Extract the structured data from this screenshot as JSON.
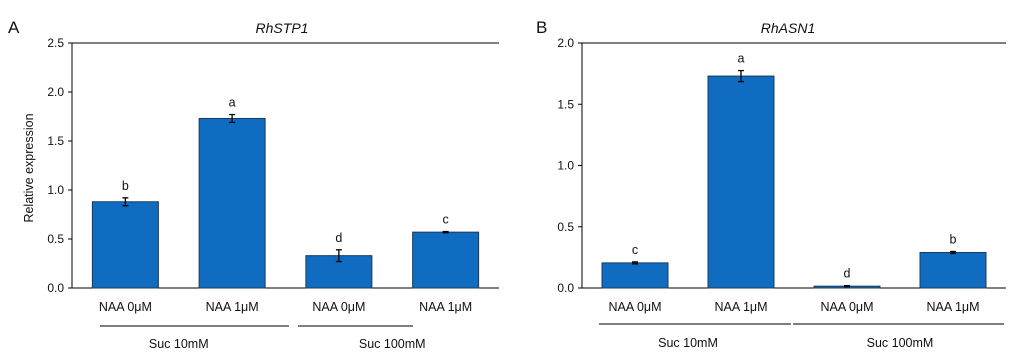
{
  "colors": {
    "bar": "#0f6cc0",
    "bar_stroke": "#1b3b5a",
    "axis": "#000000"
  },
  "chart_data": [
    {
      "type": "bar",
      "panel": "A",
      "title": "RhSTP1",
      "ylabel": "Relative expression",
      "xlabel": "",
      "ylim": [
        0,
        2.5
      ],
      "yticks": [
        "0.0",
        "0.5",
        "1.0",
        "1.5",
        "2.0",
        "2.5"
      ],
      "categories": [
        "NAA 0μM",
        "NAA 1μM",
        "NAA 0μM",
        "NAA 1μM"
      ],
      "groups": [
        {
          "label": "Suc 10mM",
          "members": [
            0,
            1
          ]
        },
        {
          "label": "Suc 100mM",
          "members": [
            2,
            3
          ]
        }
      ],
      "values": [
        0.88,
        1.73,
        0.33,
        0.57
      ],
      "errors": [
        0.04,
        0.04,
        0.06,
        0.006
      ],
      "significance": [
        "b",
        "a",
        "d",
        "c"
      ],
      "grid": false,
      "legend": "none"
    },
    {
      "type": "bar",
      "panel": "B",
      "title": "RhASN1",
      "ylabel": "",
      "xlabel": "",
      "ylim": [
        0,
        2.0
      ],
      "yticks": [
        "0.0",
        "0.5",
        "1.0",
        "1.5",
        "2.0"
      ],
      "categories": [
        "NAA 0μM",
        "NAA 1μM",
        "NAA 0μM",
        "NAA 1μM"
      ],
      "groups": [
        {
          "label": "Suc 10mM",
          "members": [
            0,
            1
          ]
        },
        {
          "label": "Suc 100mM",
          "members": [
            2,
            3
          ]
        }
      ],
      "values": [
        0.205,
        1.73,
        0.015,
        0.29
      ],
      "errors": [
        0.008,
        0.045,
        0.004,
        0.008
      ],
      "significance": [
        "c",
        "a",
        "d",
        "b"
      ],
      "grid": false,
      "legend": "none"
    }
  ]
}
